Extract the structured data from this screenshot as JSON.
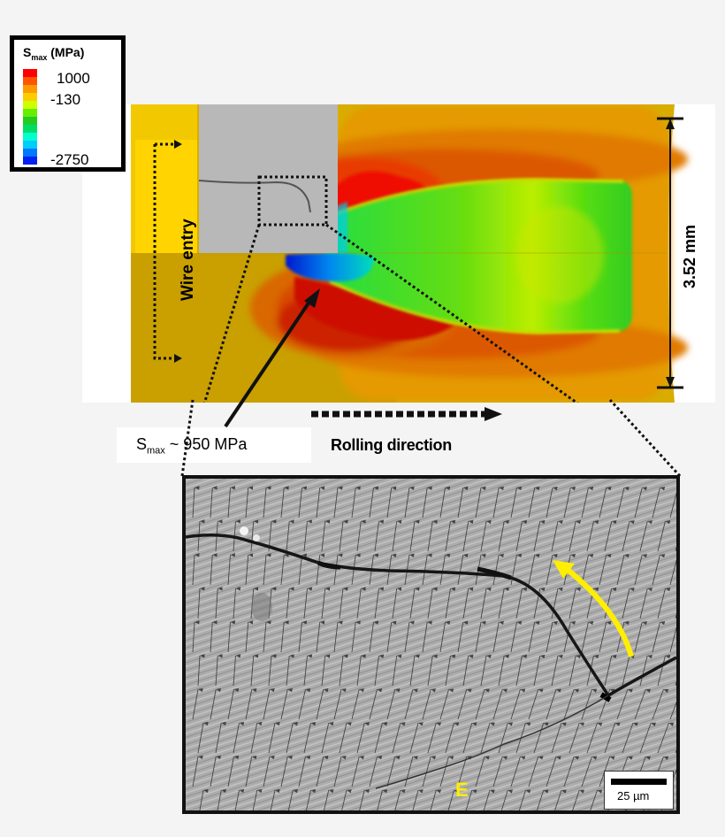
{
  "legend": {
    "title_main": "S",
    "title_sub": "max",
    "title_unit": " (MPa)",
    "values": [
      "1000",
      "-130",
      "-2750"
    ],
    "colors": [
      "#ff0000",
      "#ff5500",
      "#ff9900",
      "#ffcc00",
      "#ccff00",
      "#66ee00",
      "#22cc22",
      "#00dd66",
      "#00ffcc",
      "#00ccff",
      "#0077ff",
      "#0022ee"
    ]
  },
  "fe_map": {
    "wire_entry_label": "Wire entry",
    "dimension_label": "3.52 mm",
    "colors": {
      "background_yellow": "#dcb000",
      "bright_yellow": "#ffd500",
      "orange": "#e08a00",
      "dark_orange": "#d95a00",
      "red": "#e80800",
      "green": "#33cc11",
      "light_green": "#aaee00",
      "cyan": "#00ddee",
      "blue": "#0022dd",
      "sem_gray": "#b8b8b8"
    }
  },
  "annotation": {
    "smax_main": "S",
    "smax_sub": "max",
    "smax_value": " ~ 950 MPa",
    "rolling_direction_label": "Rolling direction"
  },
  "micrograph": {
    "grain_label": "E",
    "scale_bar_label": "25 µm",
    "arrow_color": "#ffee00"
  }
}
